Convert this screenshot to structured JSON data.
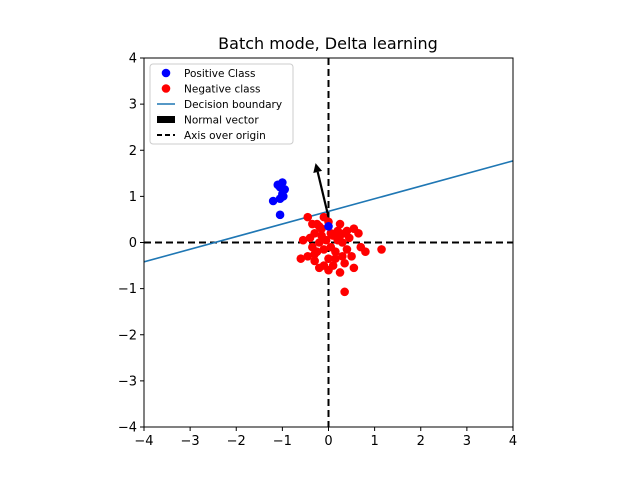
{
  "chart_data": {
    "type": "scatter",
    "title": "Batch mode, Delta learning",
    "xlabel": "",
    "ylabel": "",
    "xlim": [
      -4,
      4
    ],
    "ylim": [
      -4,
      4
    ],
    "xticks": [
      -4,
      -3,
      -2,
      -1,
      0,
      1,
      2,
      3,
      4
    ],
    "yticks": [
      -4,
      -3,
      -2,
      -1,
      0,
      1,
      2,
      3,
      4
    ],
    "grid": false,
    "legend_placement": "top-left",
    "legend": [
      {
        "label": "Positive Class",
        "kind": "marker",
        "color": "#0000ff"
      },
      {
        "label": "Negative class",
        "kind": "marker",
        "color": "#ff0000"
      },
      {
        "label": "Decision boundary",
        "kind": "line",
        "color": "#1f77b4"
      },
      {
        "label": "Normal vector",
        "kind": "patch",
        "color": "#000000"
      },
      {
        "label": "Axis over origin",
        "kind": "dashed",
        "color": "#000000"
      }
    ],
    "series": [
      {
        "name": "Positive Class",
        "color": "#0000ff",
        "points": [
          [
            -1.2,
            0.9
          ],
          [
            -1.1,
            1.25
          ],
          [
            -1.05,
            1.2
          ],
          [
            -1.0,
            1.3
          ],
          [
            -0.95,
            1.15
          ],
          [
            -1.0,
            1.05
          ],
          [
            -1.05,
            0.95
          ],
          [
            -0.98,
            1.0
          ],
          [
            -1.05,
            0.6
          ],
          [
            0.0,
            0.35
          ]
        ]
      },
      {
        "name": "Negative class",
        "color": "#ff0000",
        "points": [
          [
            -0.45,
            0.55
          ],
          [
            -0.35,
            0.4
          ],
          [
            -0.2,
            0.35
          ],
          [
            -0.1,
            0.55
          ],
          [
            0.0,
            0.45
          ],
          [
            -0.3,
            0.2
          ],
          [
            -0.15,
            0.15
          ],
          [
            0.05,
            0.2
          ],
          [
            0.2,
            0.25
          ],
          [
            0.25,
            0.4
          ],
          [
            0.35,
            0.2
          ],
          [
            0.45,
            0.1
          ],
          [
            0.55,
            0.3
          ],
          [
            0.65,
            0.2
          ],
          [
            0.7,
            -0.1
          ],
          [
            0.8,
            -0.2
          ],
          [
            1.15,
            -0.15
          ],
          [
            0.5,
            -0.3
          ],
          [
            0.55,
            -0.55
          ],
          [
            0.35,
            -0.45
          ],
          [
            0.25,
            -0.65
          ],
          [
            0.35,
            -1.07
          ],
          [
            0.1,
            -0.5
          ],
          [
            0.0,
            -0.35
          ],
          [
            -0.1,
            -0.5
          ],
          [
            -0.2,
            -0.55
          ],
          [
            -0.3,
            -0.4
          ],
          [
            -0.45,
            -0.3
          ],
          [
            -0.6,
            -0.35
          ],
          [
            -0.55,
            0.05
          ],
          [
            -0.35,
            -0.1
          ],
          [
            -0.25,
            -0.2
          ],
          [
            -0.1,
            -0.15
          ],
          [
            0.05,
            -0.1
          ],
          [
            0.15,
            -0.2
          ],
          [
            0.3,
            0.0
          ],
          [
            0.4,
            -0.15
          ],
          [
            0.2,
            0.05
          ],
          [
            0.1,
            0.15
          ],
          [
            -0.05,
            0.05
          ],
          [
            -0.15,
            0.3
          ],
          [
            -0.3,
            -0.25
          ],
          [
            0.0,
            -0.6
          ],
          [
            -0.2,
            0.0
          ],
          [
            0.3,
            -0.3
          ],
          [
            -0.4,
            0.1
          ],
          [
            0.15,
            -0.35
          ],
          [
            0.25,
            0.15
          ],
          [
            -0.25,
            0.4
          ],
          [
            0.4,
            0.25
          ]
        ]
      }
    ],
    "decision_boundary": {
      "color": "#1f77b4",
      "x": [
        -4,
        4
      ],
      "y": [
        -0.42,
        1.77
      ]
    },
    "normal_vector": {
      "color": "#000000",
      "from": [
        0.0,
        0.55
      ],
      "to": [
        -0.28,
        1.72
      ]
    },
    "origin_axes": {
      "color": "#000000",
      "style": "dashed",
      "x": 0,
      "y": 0
    }
  }
}
